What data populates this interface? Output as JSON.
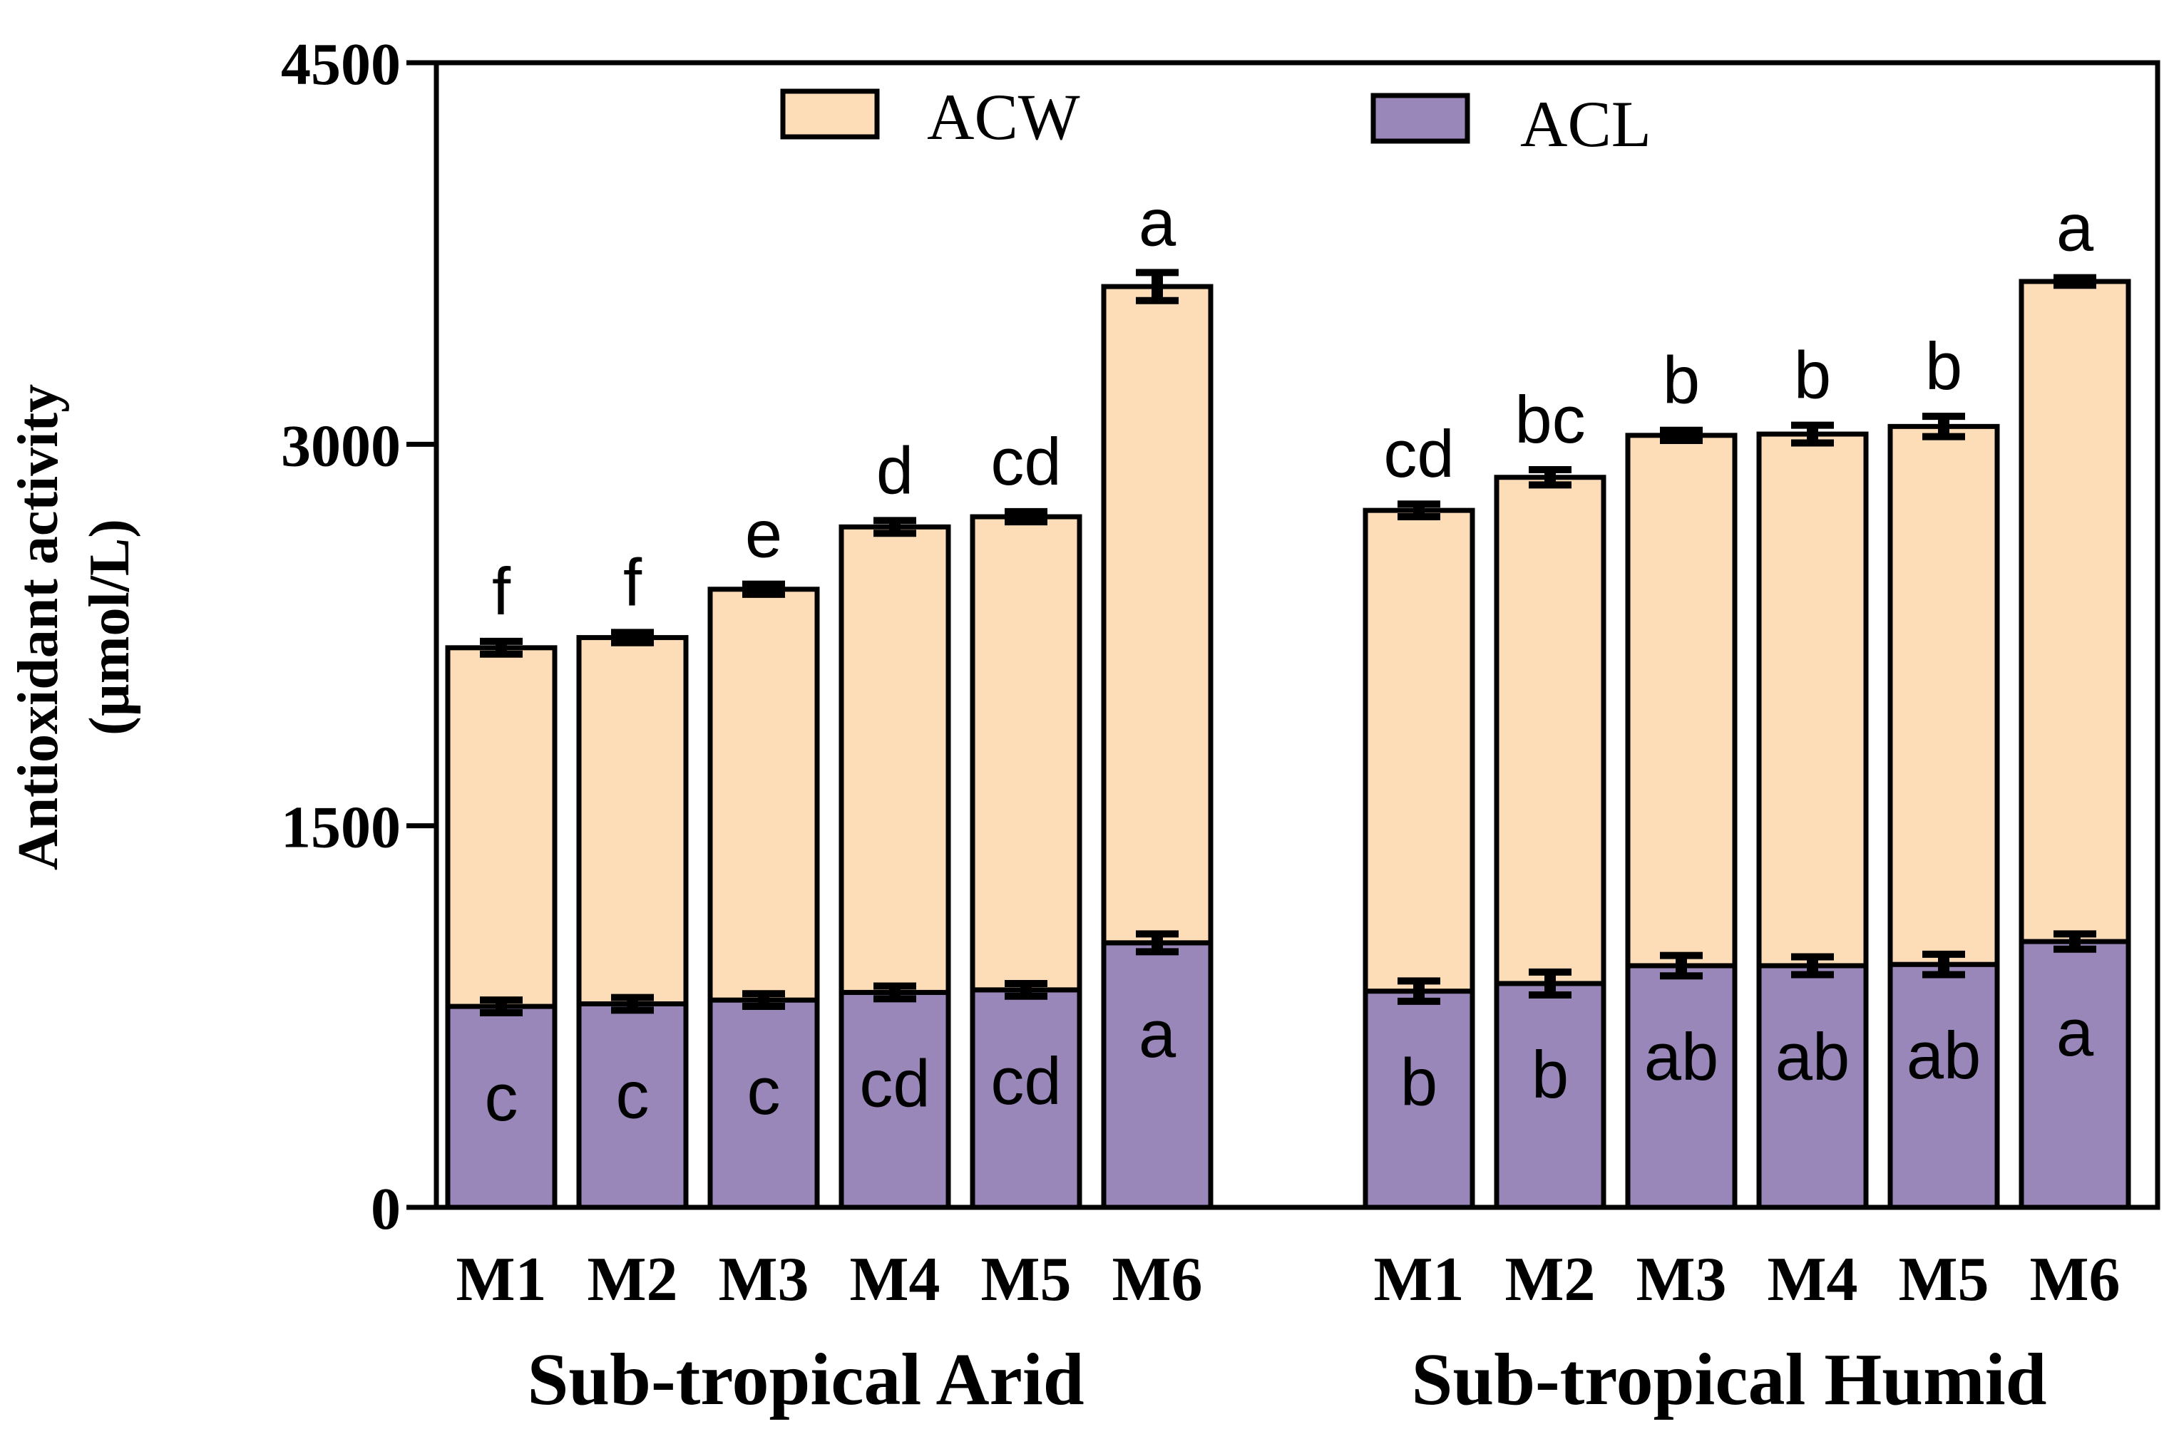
{
  "chart_data": {
    "type": "bar",
    "stacked": true,
    "ylabel_line1": "Antioxidant activity",
    "ylabel_line2": "(µmol/L)",
    "ylim": [
      0,
      4500
    ],
    "yticks": [
      0,
      1500,
      3000,
      4500
    ],
    "ytick_labels": [
      "0",
      "1500",
      "3000",
      "4500"
    ],
    "legend": {
      "position": "top-center"
    },
    "colors": {
      "ACW": "#FDDDB8",
      "ACL": "#9887B8",
      "outline": "#000000"
    },
    "groups": [
      {
        "name": "Sub-tropical Arid",
        "categories": [
          "M1",
          "M2",
          "M3",
          "M4",
          "M5",
          "M6"
        ],
        "series": [
          {
            "name": "ACL",
            "values": [
              790,
              800,
              815,
              845,
              855,
              1040
            ],
            "errors": [
              25,
              25,
              25,
              25,
              25,
              35
            ],
            "letters": [
              "c",
              "c",
              "c",
              "cd",
              "cd",
              "a"
            ]
          },
          {
            "name": "ACW",
            "values": [
              1410,
              1440,
              1615,
              1830,
              1860,
              2580
            ],
            "errors": [
              25,
              20,
              20,
              25,
              20,
              55
            ],
            "letters": [
              "f",
              "f",
              "e",
              "d",
              "cd",
              "a"
            ]
          }
        ]
      },
      {
        "name": "Sub-tropical Humid",
        "categories": [
          "M1",
          "M2",
          "M3",
          "M4",
          "M5",
          "M6"
        ],
        "series": [
          {
            "name": "ACL",
            "values": [
              850,
              880,
              950,
              950,
              955,
              1045
            ],
            "errors": [
              40,
              45,
              40,
              35,
              40,
              30
            ],
            "letters": [
              "b",
              "b",
              "ab",
              "ab",
              "ab",
              "a"
            ]
          },
          {
            "name": "ACW",
            "values": [
              1890,
              1990,
              2085,
              2090,
              2115,
              2595
            ],
            "errors": [
              25,
              30,
              20,
              35,
              40,
              15
            ],
            "letters": [
              "cd",
              "bc",
              "b",
              "b",
              "b",
              "a"
            ]
          }
        ]
      }
    ]
  }
}
